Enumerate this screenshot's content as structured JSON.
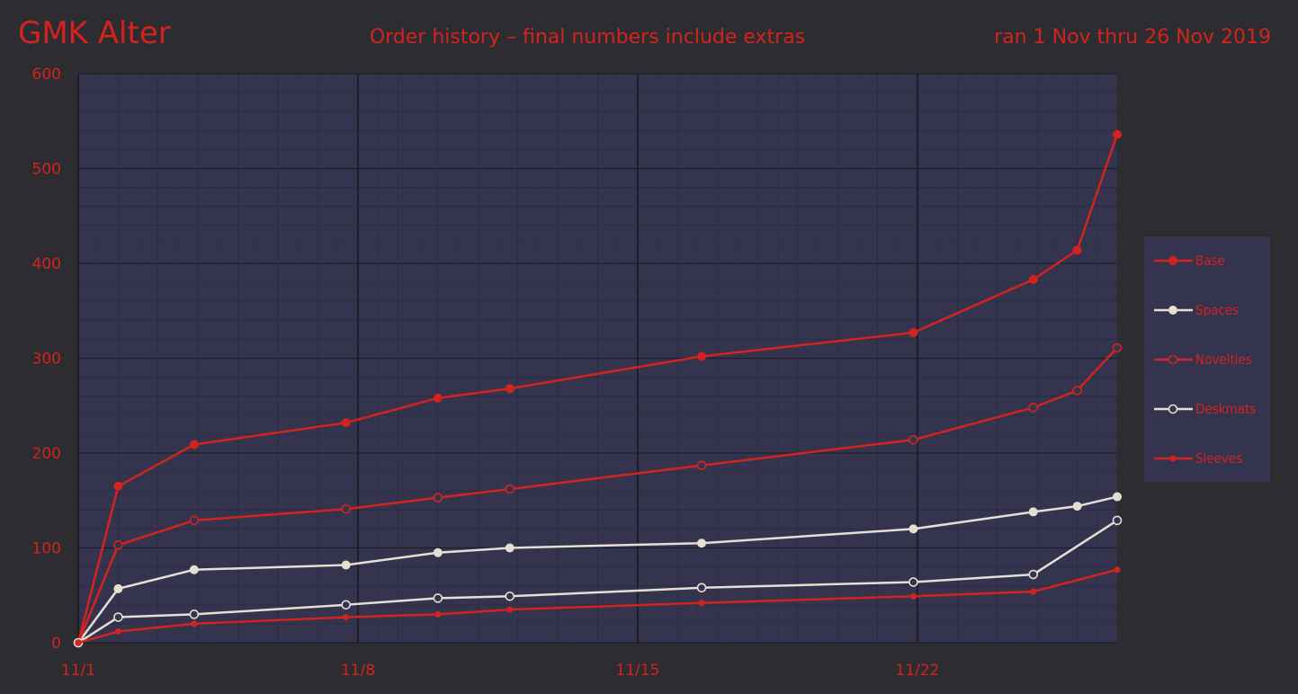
{
  "header": {
    "brand": "GMK Alter",
    "title": "Order history – final numbers include extras",
    "date_range": "ran 1 Nov thru 26 Nov 2019"
  },
  "colors": {
    "background": "#2d2c31",
    "plot_bg": "#34344f",
    "text": "#d2231f",
    "red": "#d2231f",
    "cream": "#e6ded2"
  },
  "chart_data": {
    "type": "line",
    "title": "Order history – final numbers include extras",
    "xlabel": "",
    "ylabel": "",
    "xlim": [
      1,
      27
    ],
    "ylim": [
      0,
      600
    ],
    "x_ticks": [
      1,
      8,
      15,
      22
    ],
    "x_tick_labels": [
      "11/1",
      "11/8",
      "11/15",
      "11/22"
    ],
    "y_ticks": [
      0,
      100,
      200,
      300,
      400,
      500,
      600
    ],
    "grid": true,
    "legend_position": "right",
    "x": [
      1,
      2,
      3.9,
      7.7,
      10,
      11.8,
      16.6,
      21.9,
      24.9,
      26,
      27
    ],
    "series": [
      {
        "name": "Base",
        "color": "#d2231f",
        "marker": "filled-circle",
        "values": [
          0,
          165,
          209,
          232,
          258,
          268,
          302,
          327,
          383,
          414,
          536
        ]
      },
      {
        "name": "Spaces",
        "color": "#e6ded2",
        "marker": "filled-circle",
        "values": [
          0,
          57,
          77,
          82,
          95,
          100,
          105,
          120,
          138,
          144,
          154
        ]
      },
      {
        "name": "Novelties",
        "color": "#d2231f",
        "marker": "open-circle",
        "values": [
          0,
          103,
          129,
          141,
          153,
          162,
          187,
          214,
          248,
          266,
          311
        ]
      },
      {
        "name": "Deskmats",
        "color": "#e6ded2",
        "marker": "open-circle",
        "values": [
          0,
          27,
          30,
          40,
          47,
          49,
          58,
          64,
          72,
          null,
          129
        ]
      },
      {
        "name": "Sleeves",
        "color": "#d2231f",
        "marker": "small-dot",
        "values": [
          0,
          12,
          20,
          27,
          30,
          35,
          42,
          49,
          54,
          null,
          77
        ]
      }
    ]
  }
}
